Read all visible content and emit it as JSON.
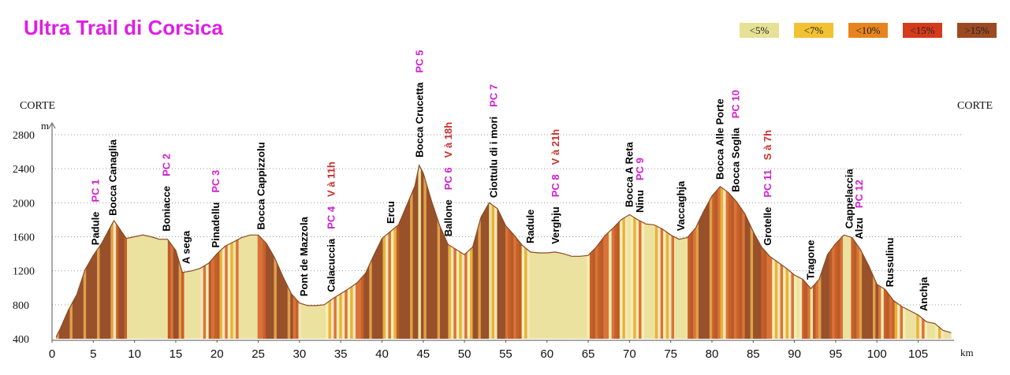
{
  "title": "Ultra Trail di Corsica",
  "start_label": "CORTE",
  "end_label": "CORTE",
  "legend": [
    {
      "label": "<5%",
      "color": "#e6e196"
    },
    {
      "label": "<7%",
      "color": "#f2c233"
    },
    {
      "label": "<10%",
      "color": "#e8841f"
    },
    {
      "label": "<15%",
      "color": "#d43a1c"
    },
    {
      "label": ">15%",
      "color": "#9b4a22"
    }
  ],
  "chart_data": {
    "type": "area",
    "title": "Ultra Trail di Corsica",
    "xlabel": "km",
    "ylabel": "m",
    "xlim": [
      0,
      110
    ],
    "ylim": [
      400,
      2800
    ],
    "x_ticks": [
      0,
      5,
      10,
      15,
      20,
      25,
      30,
      35,
      40,
      45,
      50,
      55,
      60,
      65,
      70,
      75,
      80,
      85,
      90,
      95,
      100,
      105
    ],
    "y_ticks": [
      400,
      800,
      1200,
      1600,
      2000,
      2400,
      2800
    ],
    "grid": "horizontal dotted",
    "profile": [
      [
        0.5,
        420
      ],
      [
        1,
        520
      ],
      [
        2,
        740
      ],
      [
        3,
        920
      ],
      [
        4,
        1210
      ],
      [
        5,
        1380
      ],
      [
        6,
        1520
      ],
      [
        7,
        1700
      ],
      [
        7.5,
        1790
      ],
      [
        8,
        1720
      ],
      [
        9,
        1580
      ],
      [
        10,
        1600
      ],
      [
        11,
        1620
      ],
      [
        12,
        1600
      ],
      [
        13,
        1570
      ],
      [
        14,
        1570
      ],
      [
        15,
        1440
      ],
      [
        15.8,
        1180
      ],
      [
        17,
        1200
      ],
      [
        18,
        1230
      ],
      [
        19,
        1290
      ],
      [
        20,
        1400
      ],
      [
        21,
        1490
      ],
      [
        22,
        1540
      ],
      [
        23,
        1590
      ],
      [
        24,
        1620
      ],
      [
        25,
        1620
      ],
      [
        26,
        1520
      ],
      [
        27,
        1350
      ],
      [
        28,
        1130
      ],
      [
        29,
        930
      ],
      [
        30,
        820
      ],
      [
        31,
        790
      ],
      [
        32,
        790
      ],
      [
        33,
        800
      ],
      [
        34,
        870
      ],
      [
        35,
        930
      ],
      [
        36,
        990
      ],
      [
        37,
        1060
      ],
      [
        38,
        1170
      ],
      [
        39,
        1380
      ],
      [
        40,
        1580
      ],
      [
        41,
        1660
      ],
      [
        42,
        1740
      ],
      [
        43,
        1970
      ],
      [
        44,
        2200
      ],
      [
        44.5,
        2440
      ],
      [
        45,
        2350
      ],
      [
        46,
        2020
      ],
      [
        47,
        1730
      ],
      [
        48,
        1510
      ],
      [
        49,
        1450
      ],
      [
        50,
        1390
      ],
      [
        51,
        1480
      ],
      [
        52,
        1830
      ],
      [
        53,
        2000
      ],
      [
        54,
        1930
      ],
      [
        55,
        1730
      ],
      [
        56,
        1620
      ],
      [
        57,
        1500
      ],
      [
        58,
        1420
      ],
      [
        59,
        1410
      ],
      [
        60,
        1410
      ],
      [
        61,
        1420
      ],
      [
        62,
        1400
      ],
      [
        63,
        1370
      ],
      [
        64,
        1370
      ],
      [
        65,
        1380
      ],
      [
        66,
        1480
      ],
      [
        67,
        1610
      ],
      [
        68,
        1700
      ],
      [
        69,
        1800
      ],
      [
        70,
        1860
      ],
      [
        71,
        1800
      ],
      [
        72,
        1750
      ],
      [
        73,
        1740
      ],
      [
        74,
        1690
      ],
      [
        75,
        1620
      ],
      [
        76,
        1570
      ],
      [
        77,
        1590
      ],
      [
        78,
        1700
      ],
      [
        79,
        1900
      ],
      [
        80,
        2080
      ],
      [
        81,
        2190
      ],
      [
        82,
        2120
      ],
      [
        83,
        2010
      ],
      [
        84,
        1870
      ],
      [
        85,
        1660
      ],
      [
        86,
        1480
      ],
      [
        87,
        1370
      ],
      [
        88,
        1300
      ],
      [
        89,
        1230
      ],
      [
        90,
        1150
      ],
      [
        91,
        1100
      ],
      [
        92,
        990
      ],
      [
        93,
        1100
      ],
      [
        94,
        1390
      ],
      [
        95,
        1520
      ],
      [
        96,
        1620
      ],
      [
        97,
        1590
      ],
      [
        98,
        1450
      ],
      [
        99,
        1260
      ],
      [
        100,
        1040
      ],
      [
        101,
        980
      ],
      [
        102,
        850
      ],
      [
        103,
        780
      ],
      [
        104,
        730
      ],
      [
        105,
        680
      ],
      [
        106,
        600
      ],
      [
        107,
        580
      ],
      [
        108,
        500
      ],
      [
        109,
        470
      ]
    ],
    "stripe_colors": [
      "#f7eeb2",
      "#e8b23a",
      "#d9733a",
      "#f3dca0",
      "#b85c28",
      "#f5e6b8",
      "#e0a04a",
      "#c8602a"
    ],
    "fill_colors": {
      "bright": "#ebe2a0",
      "dark": "#98512a",
      "mid": "#c98040"
    },
    "annotations": [
      {
        "km": 5.2,
        "top": 2550,
        "lines": [
          {
            "text": "Padule",
            "color": "#000000"
          },
          {
            "text": "PC 1",
            "color": "#d21ed2"
          }
        ]
      },
      {
        "km": 7.3,
        "top": 2620,
        "lines": [
          {
            "text": "Bocca Canaglia",
            "color": "#000000"
          }
        ]
      },
      {
        "km": 13.8,
        "top": 2690,
        "lines": [
          {
            "text": "Boniacce",
            "color": "#000000"
          },
          {
            "text": "PC 2",
            "color": "#d21ed2"
          }
        ]
      },
      {
        "km": 16.2,
        "top": 1500,
        "lines": [
          {
            "text": "A sega",
            "color": "#000000"
          }
        ]
      },
      {
        "km": 19.8,
        "top": 2500,
        "lines": [
          {
            "text": "Pinadellu",
            "color": "#000000"
          },
          {
            "text": "PC 3",
            "color": "#d21ed2"
          }
        ]
      },
      {
        "km": 25.3,
        "top": 2620,
        "lines": [
          {
            "text": "Bocca Cappizzolu",
            "color": "#000000"
          }
        ]
      },
      {
        "km": 30.5,
        "top": 1960,
        "lines": [
          {
            "text": "Pont de Mazzola",
            "color": "#000000"
          }
        ]
      },
      {
        "km": 33.8,
        "top": 2960,
        "lines": [
          {
            "text": "Calacuccia",
            "color": "#000000"
          },
          {
            "text": "PC 4",
            "color": "#d21ed2"
          },
          {
            "text": "V à 11h",
            "color": "#c8322d"
          }
        ]
      },
      {
        "km": 41,
        "top": 2080,
        "lines": [
          {
            "text": "Ercu",
            "color": "#000000"
          }
        ]
      },
      {
        "km": 44.5,
        "top": 3460,
        "lines": [
          {
            "text": "Bocca Crucetta",
            "color": "#000000"
          },
          {
            "text": "PC 5",
            "color": "#d21ed2"
          }
        ]
      },
      {
        "km": 48,
        "top": 3000,
        "lines": [
          {
            "text": "Ballone",
            "color": "#000000"
          },
          {
            "text": "PC 6",
            "color": "#d21ed2"
          },
          {
            "text": "V à 18h",
            "color": "#c8322d"
          }
        ]
      },
      {
        "km": 53.5,
        "top": 3240,
        "lines": [
          {
            "text": "Ciottulu di i mori",
            "color": "#000000"
          },
          {
            "text": "PC 7",
            "color": "#d21ed2"
          }
        ]
      },
      {
        "km": 57.9,
        "top": 2060,
        "lines": [
          {
            "text": "Radule",
            "color": "#000000"
          }
        ]
      },
      {
        "km": 61,
        "top": 2970,
        "lines": [
          {
            "text": "Verghju",
            "color": "#000000"
          },
          {
            "text": "PC 8",
            "color": "#d21ed2"
          },
          {
            "text": "V à 21h",
            "color": "#c8322d"
          }
        ]
      },
      {
        "km": 69.9,
        "top": 2580,
        "lines": [
          {
            "text": "Bocca A Reta",
            "color": "#000000"
          }
        ]
      },
      {
        "km": 71.2,
        "top": 2620,
        "lines": [
          {
            "text": "Ninu",
            "color": "#000000"
          },
          {
            "text": "PC 9",
            "color": "#d21ed2"
          }
        ]
      },
      {
        "km": 76.2,
        "top": 2340,
        "lines": [
          {
            "text": "Vaccaghja",
            "color": "#000000"
          }
        ]
      },
      {
        "km": 80.9,
        "top": 3050,
        "lines": [
          {
            "text": "Bocca Alle Porte",
            "color": "#000000"
          }
        ]
      },
      {
        "km": 82.8,
        "top": 3060,
        "lines": [
          {
            "text": "Bocca Soglia",
            "color": "#000000"
          },
          {
            "text": "PC 10",
            "color": "#d21ed2"
          }
        ]
      },
      {
        "km": 86.7,
        "top": 2880,
        "lines": [
          {
            "text": "Grotelle",
            "color": "#000000"
          },
          {
            "text": "PC 11",
            "color": "#d21ed2"
          },
          {
            "text": "S à 7h",
            "color": "#c8322d"
          }
        ]
      },
      {
        "km": 91.9,
        "top": 1670,
        "lines": [
          {
            "text": "Tragone",
            "color": "#000000"
          }
        ]
      },
      {
        "km": 96.6,
        "top": 2440,
        "lines": [
          {
            "text": "Cappelaccia",
            "color": "#000000"
          }
        ]
      },
      {
        "km": 97.8,
        "top": 2330,
        "lines": [
          {
            "text": "Alzu",
            "color": "#000000"
          },
          {
            "text": "PC 12",
            "color": "#d21ed2"
          }
        ]
      },
      {
        "km": 101.5,
        "top": 1600,
        "lines": [
          {
            "text": "Russulinu",
            "color": "#000000"
          }
        ]
      },
      {
        "km": 105.6,
        "top": 1050,
        "lines": [
          {
            "text": "Anchja",
            "color": "#000000"
          }
        ]
      }
    ]
  }
}
